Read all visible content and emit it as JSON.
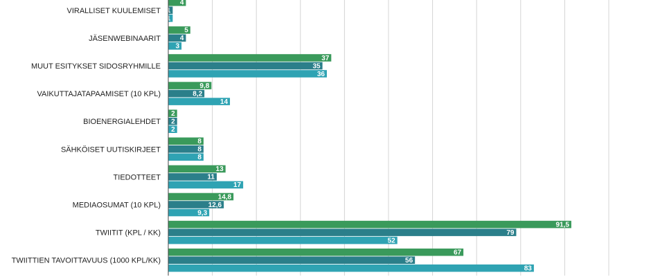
{
  "chart_data": {
    "type": "bar",
    "orientation": "horizontal",
    "grid": true,
    "xlim": [
      0,
      100
    ],
    "colors": [
      "#3a9a5b",
      "#2b7f8a",
      "#2fa3b3"
    ],
    "categories": [
      "VIRALLISET KUULEMISET",
      "JÄSENWEBINAARIT",
      "MUUT ESITYKSET SIDOSRYHMILLE",
      "VAIKUTTAJATAPAAMISET (10 KPL)",
      "BIOENERGIALEHDET",
      "SÄHKÖISET UUTISKIRJEET",
      "TIEDOTTEET",
      "MEDIAOSUMAT (10 KPL)",
      "TWIITIT (KPL / KK)",
      "TWIITTIEN TAVOITTAVUUS (1000 KPL/KK)"
    ],
    "series": [
      {
        "values": [
          4,
          5,
          37,
          9.8,
          2,
          8,
          13,
          14.8,
          91.5,
          67
        ],
        "labels": [
          "4",
          "5",
          "37",
          "9,8",
          "2",
          "8",
          "13",
          "14,8",
          "91,5",
          "67"
        ]
      },
      {
        "values": [
          1,
          4,
          35,
          8.2,
          2,
          8,
          11,
          12.6,
          79,
          56
        ],
        "labels": [
          "1",
          "4",
          "35",
          "8,2",
          "2",
          "8",
          "11",
          "12,6",
          "79",
          "56"
        ]
      },
      {
        "values": [
          1,
          3,
          36,
          14,
          2,
          8,
          17,
          9.3,
          52,
          83
        ],
        "labels": [
          "1",
          "3",
          "36",
          "14",
          "2",
          "8",
          "17",
          "9,3",
          "52",
          "83"
        ]
      }
    ]
  }
}
